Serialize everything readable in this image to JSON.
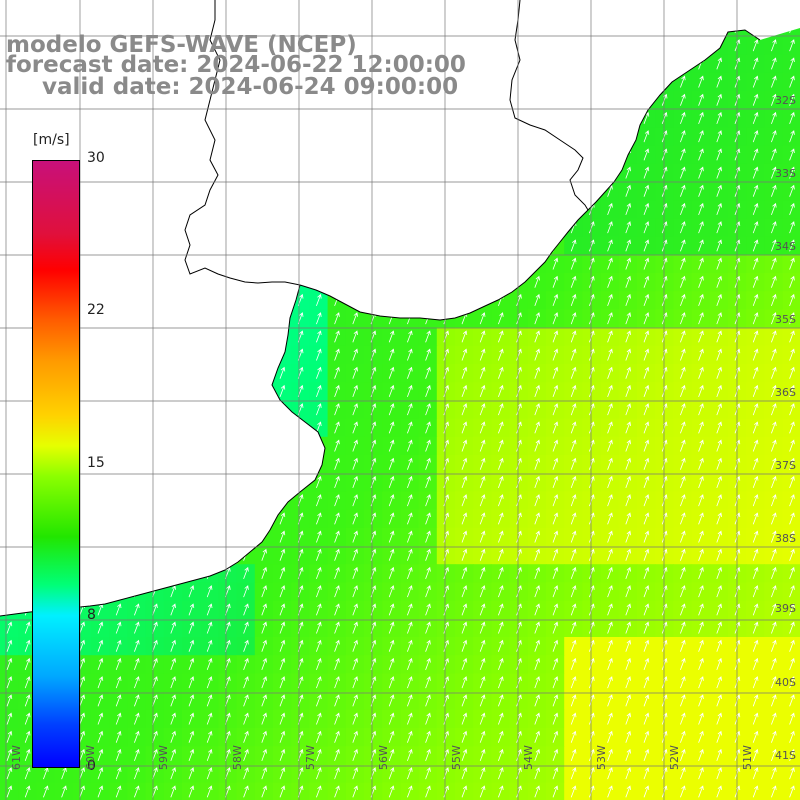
{
  "title": {
    "line1": "modelo GEFS-WAVE (NCEP)",
    "line2": "forecast date: 2024-06-22 12:00:00",
    "line3": "valid date: 2024-06-24 09:00:00"
  },
  "colorbar": {
    "unit": "[m/s]",
    "ticks": [
      "30",
      "22",
      "15",
      "8",
      "0"
    ],
    "min": 0,
    "max": 30,
    "colors": [
      "#0000ff",
      "#0040ff",
      "#00a8ff",
      "#00f0ff",
      "#00ff78",
      "#22e600",
      "#8cff00",
      "#e6ff00",
      "#ffd200",
      "#ff9a00",
      "#ff5a00",
      "#ff0000",
      "#e0103c",
      "#c8107a"
    ]
  },
  "grid": {
    "lat_labels": [
      "32S",
      "33S",
      "34S",
      "35S",
      "36S",
      "37S",
      "38S",
      "39S",
      "40S",
      "41S"
    ],
    "lon_labels": [
      "61W",
      "60W",
      "59W",
      "58W",
      "57W",
      "56W",
      "55W",
      "54W",
      "53W",
      "52W",
      "51W"
    ]
  },
  "colors": {
    "land": "#ffffff",
    "coast": "#000000",
    "gridline": "#777777",
    "vector": "#ffffff"
  },
  "field": {
    "variable": "wind speed and direction",
    "units": "m/s",
    "typical_range": [
      8,
      17
    ],
    "max_region": "southeast (approx 16-17 m/s, yellow)",
    "coastal_min": "approx 8-9 m/s (cyan)",
    "arrow_direction": "toward north-northeast"
  }
}
